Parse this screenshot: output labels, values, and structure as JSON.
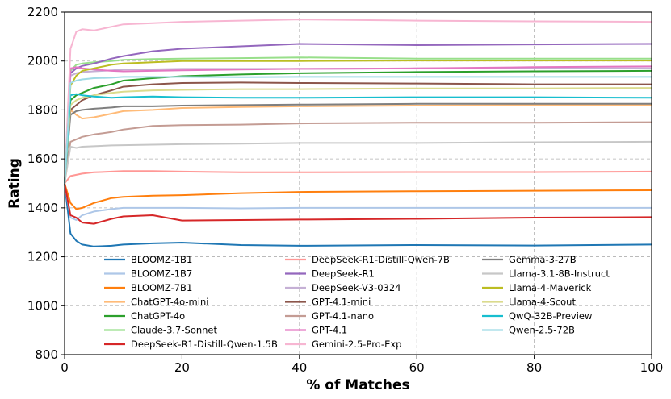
{
  "chart_data": {
    "type": "line",
    "title": "",
    "xlabel": "% of Matches",
    "ylabel": "Rating",
    "xlim": [
      0,
      100
    ],
    "ylim": [
      800,
      2200
    ],
    "xticks": [
      0,
      20,
      40,
      60,
      80,
      100
    ],
    "yticks": [
      800,
      1000,
      1200,
      1400,
      1600,
      1800,
      2000,
      2200
    ],
    "grid": true,
    "legend_location": "lower-center",
    "legend_columns": 3,
    "x": [
      0,
      1,
      2,
      3,
      5,
      8,
      10,
      15,
      20,
      30,
      40,
      60,
      80,
      100
    ],
    "series": [
      {
        "name": "BLOOMZ-1B1",
        "color": "#1f77b4",
        "values": [
          1500,
          1295,
          1265,
          1250,
          1242,
          1245,
          1250,
          1255,
          1258,
          1248,
          1245,
          1248,
          1246,
          1250
        ]
      },
      {
        "name": "BLOOMZ-1B7",
        "color": "#aec7e8",
        "values": [
          1500,
          1360,
          1350,
          1370,
          1385,
          1395,
          1400,
          1400,
          1400,
          1398,
          1400,
          1400,
          1400,
          1400
        ]
      },
      {
        "name": "BLOOMZ-7B1",
        "color": "#ff7f0e",
        "values": [
          1500,
          1420,
          1395,
          1400,
          1420,
          1440,
          1445,
          1450,
          1452,
          1460,
          1465,
          1468,
          1470,
          1472
        ]
      },
      {
        "name": "ChatGPT-4o-mini",
        "color": "#ffbb78",
        "values": [
          1500,
          1800,
          1780,
          1765,
          1770,
          1785,
          1795,
          1800,
          1808,
          1812,
          1815,
          1818,
          1820,
          1820
        ]
      },
      {
        "name": "ChatGPT-4o",
        "color": "#2ca02c",
        "values": [
          1500,
          1840,
          1860,
          1870,
          1890,
          1905,
          1920,
          1930,
          1938,
          1945,
          1950,
          1955,
          1958,
          1960
        ]
      },
      {
        "name": "Claude-3.7-Sonnet",
        "color": "#98df8a",
        "values": [
          1500,
          1960,
          1985,
          1990,
          1995,
          2000,
          2005,
          2008,
          2010,
          2012,
          2015,
          2010,
          2010,
          2010
        ]
      },
      {
        "name": "DeepSeek-R1-Distill-Qwen-1.5B",
        "color": "#d62728",
        "values": [
          1500,
          1370,
          1360,
          1340,
          1335,
          1355,
          1365,
          1370,
          1348,
          1350,
          1352,
          1355,
          1360,
          1362
        ]
      },
      {
        "name": "DeepSeek-R1-Distill-Qwen-7B",
        "color": "#ff9896",
        "values": [
          1500,
          1530,
          1535,
          1540,
          1545,
          1548,
          1550,
          1550,
          1548,
          1545,
          1545,
          1546,
          1546,
          1548
        ]
      },
      {
        "name": "DeepSeek-R1",
        "color": "#9467bd",
        "values": [
          1500,
          1950,
          1970,
          1980,
          1990,
          2010,
          2020,
          2040,
          2050,
          2060,
          2070,
          2065,
          2068,
          2070
        ]
      },
      {
        "name": "DeepSeek-V3-0324",
        "color": "#c5b0d5",
        "values": [
          1500,
          1940,
          1950,
          1955,
          1958,
          1962,
          1965,
          1966,
          1968,
          1968,
          1968,
          1970,
          1970,
          1970
        ]
      },
      {
        "name": "GPT-4.1-mini",
        "color": "#8c564b",
        "values": [
          1500,
          1800,
          1820,
          1840,
          1860,
          1880,
          1895,
          1905,
          1910,
          1912,
          1910,
          1908,
          1905,
          1905
        ]
      },
      {
        "name": "GPT-4.1-nano",
        "color": "#c49c94",
        "values": [
          1500,
          1670,
          1680,
          1690,
          1700,
          1710,
          1720,
          1735,
          1738,
          1740,
          1745,
          1748,
          1748,
          1750
        ]
      },
      {
        "name": "GPT-4.1",
        "color": "#e377c2",
        "values": [
          1500,
          1970,
          1975,
          1970,
          1965,
          1960,
          1958,
          1960,
          1962,
          1965,
          1968,
          1970,
          1975,
          1978
        ]
      },
      {
        "name": "Gemini-2.5-Pro-Exp",
        "color": "#f7b6d2",
        "values": [
          1500,
          2050,
          2120,
          2130,
          2125,
          2140,
          2150,
          2155,
          2160,
          2165,
          2170,
          2165,
          2162,
          2160
        ]
      },
      {
        "name": "Gemma-3-27B",
        "color": "#7f7f7f",
        "values": [
          1500,
          1780,
          1795,
          1800,
          1805,
          1810,
          1815,
          1815,
          1818,
          1820,
          1822,
          1825,
          1825,
          1825
        ]
      },
      {
        "name": "Llama-3.1-8B-Instruct",
        "color": "#c7c7c7",
        "values": [
          1500,
          1650,
          1645,
          1650,
          1652,
          1655,
          1656,
          1658,
          1660,
          1662,
          1665,
          1665,
          1668,
          1670
        ]
      },
      {
        "name": "Llama-4-Maverick",
        "color": "#bcbd22",
        "values": [
          1500,
          1900,
          1940,
          1960,
          1970,
          1985,
          1990,
          1995,
          2000,
          2000,
          2000,
          2002,
          2002,
          2002
        ]
      },
      {
        "name": "Llama-4-Scout",
        "color": "#dbdb8d",
        "values": [
          1500,
          1820,
          1840,
          1850,
          1860,
          1870,
          1875,
          1880,
          1882,
          1885,
          1885,
          1888,
          1888,
          1890
        ]
      },
      {
        "name": "QwQ-32B-Preview",
        "color": "#17becf",
        "values": [
          1500,
          1860,
          1865,
          1860,
          1855,
          1850,
          1852,
          1855,
          1852,
          1850,
          1850,
          1852,
          1852,
          1850
        ]
      },
      {
        "name": "Qwen-2.5-72B",
        "color": "#9edae5",
        "values": [
          1500,
          1910,
          1920,
          1925,
          1930,
          1932,
          1935,
          1935,
          1935,
          1934,
          1935,
          1935,
          1935,
          1935
        ]
      }
    ]
  }
}
